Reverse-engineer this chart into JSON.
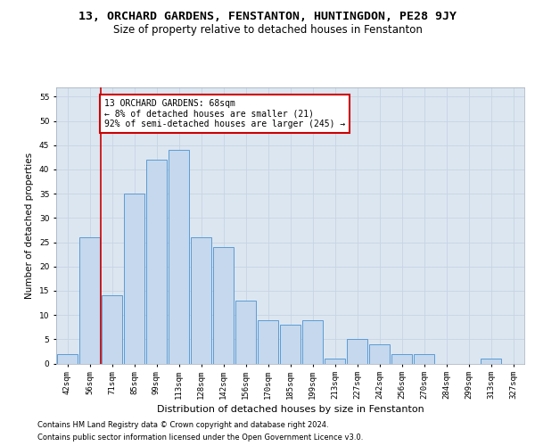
{
  "title_line1": "13, ORCHARD GARDENS, FENSTANTON, HUNTINGDON, PE28 9JY",
  "title_line2": "Size of property relative to detached houses in Fenstanton",
  "xlabel": "Distribution of detached houses by size in Fenstanton",
  "ylabel": "Number of detached properties",
  "categories": [
    "42sqm",
    "56sqm",
    "71sqm",
    "85sqm",
    "99sqm",
    "113sqm",
    "128sqm",
    "142sqm",
    "156sqm",
    "170sqm",
    "185sqm",
    "199sqm",
    "213sqm",
    "227sqm",
    "242sqm",
    "256sqm",
    "270sqm",
    "284sqm",
    "299sqm",
    "313sqm",
    "327sqm"
  ],
  "values": [
    2,
    26,
    14,
    35,
    42,
    44,
    26,
    24,
    13,
    9,
    8,
    9,
    1,
    5,
    4,
    2,
    2,
    0,
    0,
    1,
    0
  ],
  "bar_color": "#c5d8ed",
  "bar_edge_color": "#5b9bd5",
  "annotation_text_line1": "13 ORCHARD GARDENS: 68sqm",
  "annotation_text_line2": "← 8% of detached houses are smaller (21)",
  "annotation_text_line3": "92% of semi-detached houses are larger (245) →",
  "annotation_box_color": "#ffffff",
  "annotation_box_edge": "#cc0000",
  "vline_color": "#cc0000",
  "ylim": [
    0,
    57
  ],
  "yticks": [
    0,
    5,
    10,
    15,
    20,
    25,
    30,
    35,
    40,
    45,
    50,
    55
  ],
  "grid_color": "#c8d4e3",
  "background_color": "#dce6f1",
  "footer_line1": "Contains HM Land Registry data © Crown copyright and database right 2024.",
  "footer_line2": "Contains public sector information licensed under the Open Government Licence v3.0.",
  "title_fontsize": 9.5,
  "subtitle_fontsize": 8.5,
  "axis_label_fontsize": 7.5,
  "tick_fontsize": 6.5,
  "annotation_fontsize": 7,
  "footer_fontsize": 6
}
